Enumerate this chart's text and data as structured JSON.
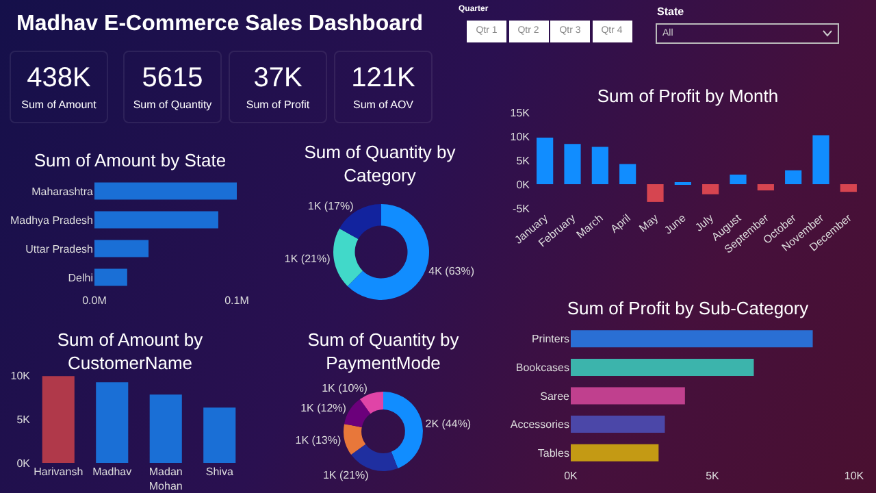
{
  "chart_data": [
    {
      "type": "other",
      "title": "Madhav E-Commerce Sales Dashboard",
      "annotations": [
        "Quarter",
        "Qtr 1",
        "Qtr 2",
        "Qtr 3",
        "Qtr 4",
        "State",
        "All",
        "438K",
        "Sum of Amount",
        "5615",
        "Sum of Quantity",
        "37K",
        "Sum of Profit",
        "121K",
        "Sum of AOV"
      ]
    },
    {
      "type": "bar",
      "title": "Sum of Amount by State",
      "orientation": "horizontal",
      "categories": [
        "Maharashtra",
        "Madhya Pradesh",
        "Uttar Pradesh",
        "Delhi"
      ],
      "values": [
        0.1,
        0.087,
        0.038,
        0.023
      ],
      "color": "#1a6fd6",
      "xlim": [
        0,
        0.1
      ],
      "xticks": [
        {
          "value": 0,
          "label": "0.0M"
        },
        {
          "value": 0.1,
          "label": "0.1M"
        }
      ]
    },
    {
      "type": "donut",
      "title": "Sum of Quantity by Category",
      "categories": [
        null,
        null,
        null
      ],
      "values": [
        63,
        21,
        17
      ],
      "value_labels": [
        "4K (63%)",
        "1K (21%)",
        "1K (17%)"
      ],
      "colors": [
        "#118dff",
        "#41d9c9",
        "#12239e"
      ]
    },
    {
      "type": "bar",
      "title": "Sum of Profit by Month",
      "categories": [
        "January",
        "February",
        "March",
        "April",
        "May",
        "June",
        "July",
        "August",
        "September",
        "October",
        "November",
        "December"
      ],
      "values": [
        9700,
        8400,
        7800,
        4200,
        -3700,
        300,
        -2100,
        2000,
        -1300,
        2900,
        10200,
        -1600
      ],
      "colors": [
        "#118dff",
        "#118dff",
        "#118dff",
        "#118dff",
        "#d64550",
        "#118dff",
        "#d64550",
        "#118dff",
        "#d64550",
        "#118dff",
        "#118dff",
        "#d64550"
      ],
      "ylim": [
        -5000,
        15000
      ],
      "yticks": [
        {
          "value": -5000,
          "label": "-5K"
        },
        {
          "value": 0,
          "label": "0K"
        },
        {
          "value": 5000,
          "label": "5K"
        },
        {
          "value": 10000,
          "label": "10K"
        },
        {
          "value": 15000,
          "label": "15K"
        }
      ]
    },
    {
      "type": "bar",
      "title": "Sum of Amount by CustomerName",
      "categories": [
        "Harivansh",
        "Madhav",
        "Madan Mohan",
        "Shiva"
      ],
      "values": [
        9900,
        9200,
        7800,
        6300
      ],
      "colors": [
        "#b0394a",
        "#1a6fd6",
        "#1a6fd6",
        "#1a6fd6"
      ],
      "ylim": [
        0,
        10000
      ],
      "yticks": [
        {
          "value": 0,
          "label": "0K"
        },
        {
          "value": 5000,
          "label": "5K"
        },
        {
          "value": 10000,
          "label": "10K"
        }
      ]
    },
    {
      "type": "donut",
      "title": "Sum of Quantity by PaymentMode",
      "categories": [
        null,
        null,
        null,
        null,
        null
      ],
      "values": [
        44,
        21,
        13,
        12,
        10
      ],
      "value_labels": [
        "2K (44%)",
        "1K (21%)",
        "1K (13%)",
        "1K (12%)",
        "1K (10%)"
      ],
      "colors": [
        "#118dff",
        "#1f2fa0",
        "#e8773a",
        "#6b007b",
        "#e044a7"
      ]
    },
    {
      "type": "bar",
      "title": "Sum of Profit by Sub-Category",
      "orientation": "horizontal",
      "categories": [
        "Printers",
        "Bookcases",
        "Saree",
        "Accessories",
        "Tables"
      ],
      "values": [
        8540,
        6460,
        4030,
        3320,
        3100
      ],
      "colors": [
        "#2a6fd4",
        "#3cb4ac",
        "#c0408e",
        "#4b47a8",
        "#c49a14"
      ],
      "xlim": [
        0,
        10000
      ],
      "xticks": [
        {
          "value": 0,
          "label": "0K"
        },
        {
          "value": 5000,
          "label": "5K"
        },
        {
          "value": 10000,
          "label": "10K"
        }
      ]
    }
  ]
}
